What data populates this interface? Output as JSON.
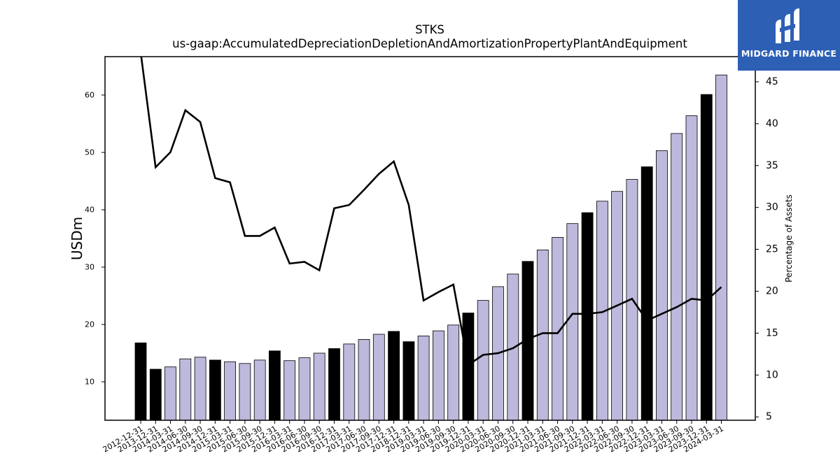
{
  "chart_data": {
    "type": "bar",
    "title": "STKS",
    "subtitle": "us-gaap:AccumulatedDepreciationDepletionAndAmortizationPropertyPlantAndEquipment",
    "ylabel": "USDm",
    "y2label": "Percentage of Assets",
    "ylim": [
      3.3,
      66.7
    ],
    "y2lim": [
      4.6,
      48.0
    ],
    "yticks": [
      10,
      20,
      30,
      40,
      50,
      60
    ],
    "y2ticks": [
      5,
      10,
      15,
      20,
      25,
      30,
      35,
      40,
      45
    ],
    "categories": [
      "2012-12-31",
      "2013-12-31",
      "2014-03-31",
      "2014-06-30",
      "2014-09-30",
      "2014-12-31",
      "2015-03-31",
      "2015-06-30",
      "2015-09-30",
      "2015-12-31",
      "2016-03-31",
      "2016-06-30",
      "2016-09-30",
      "2016-12-31",
      "2017-03-31",
      "2017-06-30",
      "2017-09-30",
      "2017-12-31",
      "2018-12-31",
      "2019-03-31",
      "2019-06-30",
      "2019-09-30",
      "2019-12-31",
      "2020-03-31",
      "2020-06-30",
      "2020-09-30",
      "2020-12-31",
      "2021-03-31",
      "2021-06-30",
      "2021-09-30",
      "2021-12-31",
      "2022-03-31",
      "2022-06-30",
      "2022-09-30",
      "2022-12-31",
      "2023-03-31",
      "2023-06-30",
      "2023-09-30",
      "2023-12-31",
      "2024-03-31"
    ],
    "series": [
      {
        "kind": "bar",
        "values": [
          16.8,
          12.2,
          12.6,
          14.0,
          14.3,
          13.8,
          13.5,
          13.2,
          13.8,
          15.4,
          13.7,
          14.2,
          15.0,
          15.8,
          16.6,
          17.4,
          18.3,
          18.8,
          17.0,
          18.0,
          18.9,
          19.9,
          22.0,
          24.2,
          26.6,
          28.8,
          31.0,
          33.0,
          35.2,
          37.6,
          39.5,
          41.5,
          43.2,
          45.3,
          47.5,
          50.3,
          53.3,
          56.4,
          60.1,
          63.5
        ],
        "year_end_flags": [
          true,
          true,
          false,
          false,
          false,
          true,
          false,
          false,
          false,
          true,
          false,
          false,
          false,
          true,
          false,
          false,
          false,
          true,
          true,
          false,
          false,
          false,
          true,
          false,
          false,
          false,
          true,
          false,
          false,
          false,
          true,
          false,
          false,
          false,
          true,
          false,
          false,
          false,
          true,
          false
        ]
      },
      {
        "kind": "line",
        "axis": "right",
        "values": [
          48.5,
          34.8,
          36.6,
          41.6,
          40.2,
          33.5,
          33.0,
          26.6,
          26.6,
          27.6,
          23.3,
          23.5,
          22.5,
          29.9,
          30.3,
          32.1,
          34.0,
          35.5,
          30.3,
          18.9,
          19.9,
          20.8,
          11.2,
          12.4,
          12.6,
          13.2,
          14.3,
          15.0,
          15.0,
          17.3,
          17.3,
          17.5,
          18.3,
          19.1,
          16.5,
          17.3,
          18.1,
          19.1,
          18.9,
          20.5
        ]
      }
    ],
    "colors": {
      "bar": "#bcb9dc",
      "bar_highlight": "#000000",
      "line": "#000000"
    },
    "grid": false,
    "legend": "none"
  },
  "logo": {
    "text": "MIDGARD FINANCE",
    "background": "#2d5fb5"
  }
}
